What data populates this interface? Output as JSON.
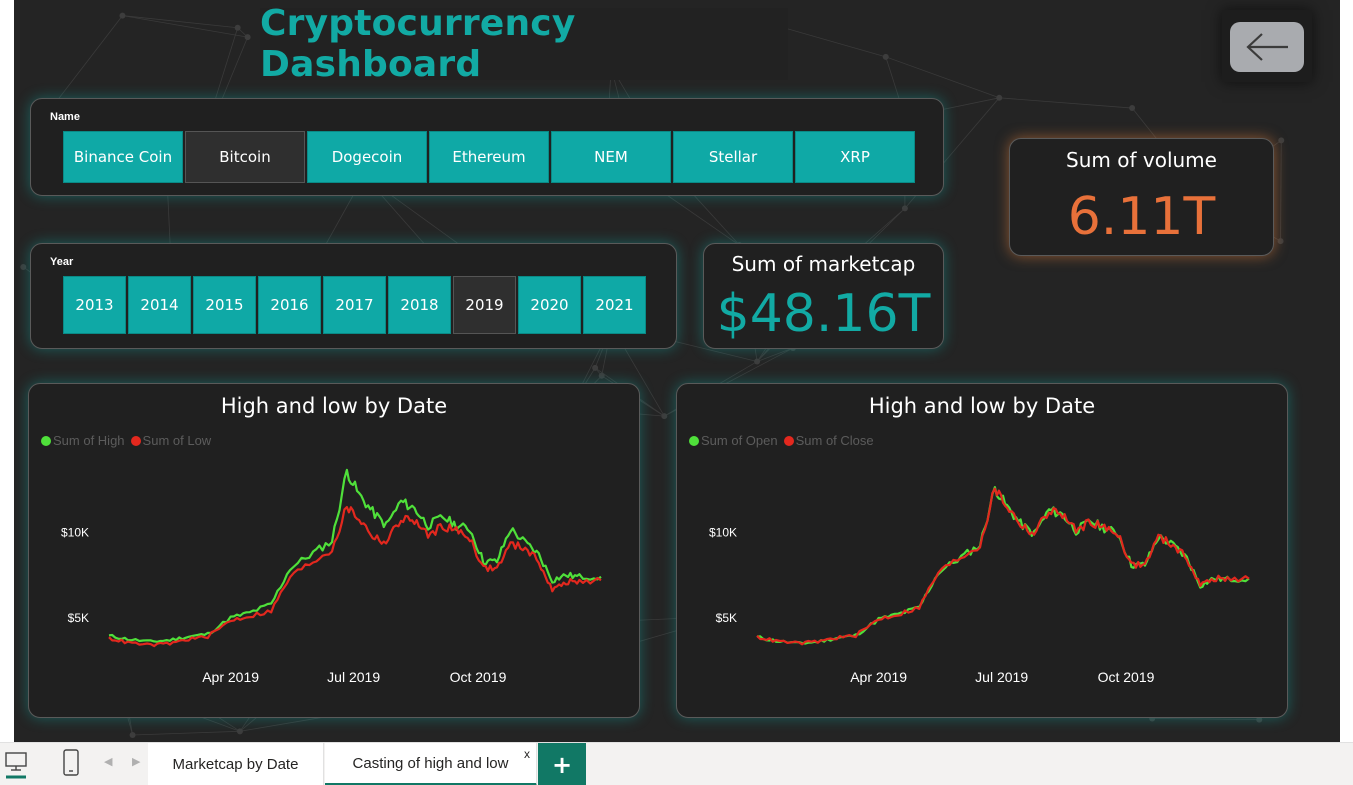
{
  "dashboard": {
    "title": "Cryptocurrency Dashboard",
    "accent_color": "#12aaa4",
    "back_button": {
      "icon": "arrow-left-icon"
    }
  },
  "name_slicer": {
    "label": "Name",
    "options": [
      "Binance Coin",
      "Bitcoin",
      "Dogecoin",
      "Ethereum",
      "NEM",
      "Stellar",
      "XRP"
    ],
    "selected": "Bitcoin"
  },
  "year_slicer": {
    "label": "Year",
    "options": [
      "2013",
      "2014",
      "2015",
      "2016",
      "2017",
      "2018",
      "2019",
      "2020",
      "2021"
    ],
    "selected": "2019"
  },
  "cards": {
    "marketcap": {
      "title": "Sum of marketcap",
      "value": "$48.16T",
      "color": "#12aaa4"
    },
    "volume": {
      "title": "Sum of volume",
      "value": "6.11T",
      "color": "#e8713a"
    }
  },
  "chart_data": [
    {
      "type": "line",
      "title": "High and low by Date",
      "x": [
        "2019-01-01",
        "2019-01-15",
        "2019-02-01",
        "2019-02-15",
        "2019-03-01",
        "2019-03-15",
        "2019-04-01",
        "2019-04-15",
        "2019-05-01",
        "2019-05-15",
        "2019-06-01",
        "2019-06-15",
        "2019-06-26",
        "2019-07-05",
        "2019-07-15",
        "2019-07-25",
        "2019-08-05",
        "2019-08-15",
        "2019-08-25",
        "2019-09-05",
        "2019-09-15",
        "2019-09-25",
        "2019-10-05",
        "2019-10-15",
        "2019-10-25",
        "2019-11-05",
        "2019-11-15",
        "2019-11-25",
        "2019-12-05",
        "2019-12-15",
        "2019-12-31"
      ],
      "series": [
        {
          "name": "Sum of High",
          "color": "#4fe03a",
          "values": [
            3950,
            3750,
            3600,
            3700,
            3900,
            4050,
            5000,
            5300,
            5800,
            7900,
            8800,
            9500,
            13600,
            12200,
            11200,
            10400,
            11800,
            11400,
            10400,
            10900,
            10400,
            10200,
            8300,
            8300,
            10200,
            9400,
            8700,
            7200,
            7500,
            7400,
            7400
          ]
        },
        {
          "name": "Sum of Low",
          "color": "#e3281e",
          "values": [
            3800,
            3550,
            3400,
            3500,
            3750,
            3900,
            4850,
            5100,
            5400,
            7400,
            8300,
            9000,
            11500,
            10800,
            9800,
            9400,
            10800,
            10700,
            9800,
            10400,
            10100,
            9700,
            7900,
            7900,
            9300,
            9100,
            8300,
            6600,
            7100,
            7100,
            7200
          ]
        }
      ],
      "ytick_labels": [
        "$5K",
        "$10K"
      ],
      "xtick_labels": [
        "Apr 2019",
        "Jul 2019",
        "Oct 2019"
      ],
      "ylim": [
        3000,
        14000
      ],
      "legend": "top-left"
    },
    {
      "type": "line",
      "title": "High and low by Date",
      "x": [
        "2019-01-01",
        "2019-01-15",
        "2019-02-01",
        "2019-02-15",
        "2019-03-01",
        "2019-03-15",
        "2019-04-01",
        "2019-04-15",
        "2019-05-01",
        "2019-05-15",
        "2019-06-01",
        "2019-06-15",
        "2019-06-26",
        "2019-07-05",
        "2019-07-15",
        "2019-07-25",
        "2019-08-05",
        "2019-08-15",
        "2019-08-25",
        "2019-09-05",
        "2019-09-15",
        "2019-09-25",
        "2019-10-05",
        "2019-10-15",
        "2019-10-25",
        "2019-11-05",
        "2019-11-15",
        "2019-11-25",
        "2019-12-05",
        "2019-12-15",
        "2019-12-31"
      ],
      "series": [
        {
          "name": "Sum of Open",
          "color": "#4fe03a",
          "values": [
            3870,
            3650,
            3500,
            3600,
            3820,
            3970,
            4920,
            5200,
            5600,
            7650,
            8550,
            9250,
            12600,
            11500,
            10500,
            9900,
            11300,
            11050,
            10100,
            10650,
            10250,
            9950,
            8100,
            8100,
            9750,
            9250,
            8500,
            6900,
            7300,
            7250,
            7300
          ]
        },
        {
          "name": "Sum of Close",
          "color": "#e3281e",
          "values": [
            3880,
            3640,
            3510,
            3610,
            3830,
            3960,
            4930,
            5190,
            5610,
            7640,
            8560,
            9240,
            12580,
            11520,
            10480,
            9910,
            11290,
            11060,
            10090,
            10660,
            10240,
            9960,
            8090,
            8110,
            9740,
            9260,
            8490,
            6910,
            7290,
            7260,
            7290
          ]
        }
      ],
      "ytick_labels": [
        "$5K",
        "$10K"
      ],
      "xtick_labels": [
        "Apr 2019",
        "Jul 2019",
        "Oct 2019"
      ],
      "ylim": [
        3000,
        14000
      ],
      "legend": "top-left"
    }
  ],
  "tabbar": {
    "desktop_icon": "desktop-icon",
    "phone_icon": "phone-icon",
    "prev_icon": "chevron-left-icon",
    "next_icon": "chevron-right-icon",
    "tabs": [
      {
        "label": "Marketcap by Date",
        "active": false
      },
      {
        "label": "Casting of high and low",
        "active": true,
        "close": "x"
      }
    ],
    "add_label": "+"
  }
}
